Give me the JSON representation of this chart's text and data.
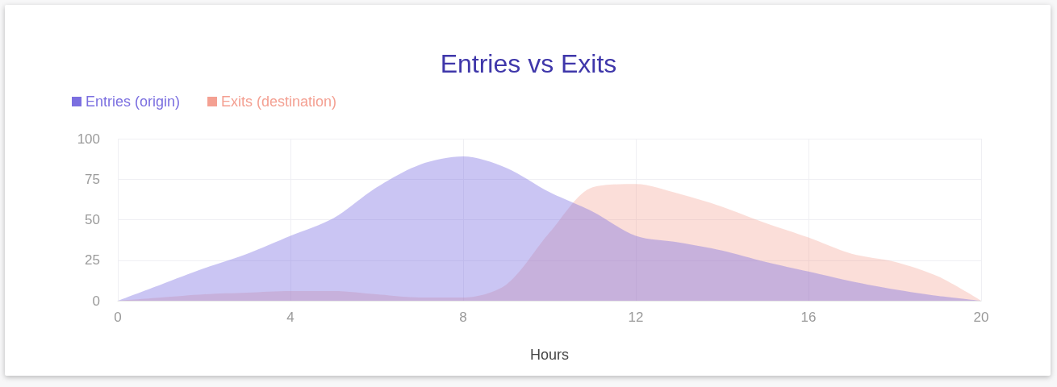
{
  "chart_data": {
    "type": "area",
    "title": "Entries vs Exits",
    "xlabel": "Hours",
    "x": [
      0,
      1,
      2,
      3,
      4,
      5,
      6,
      7,
      8,
      9,
      10,
      11,
      12,
      13,
      14,
      15,
      16,
      17,
      18,
      19,
      20
    ],
    "series": [
      {
        "name": "Entries (origin)",
        "color": "#7b6fe0",
        "values": [
          0,
          10,
          20,
          29,
          40,
          51,
          70,
          84,
          89,
          82,
          67,
          55,
          40,
          36,
          31,
          24,
          18,
          12,
          7,
          3,
          0
        ]
      },
      {
        "name": "Exits (destination)",
        "color": "#f4a092",
        "values": [
          0,
          2,
          4,
          5,
          6,
          6,
          4,
          2,
          2,
          10,
          42,
          70,
          72,
          66,
          58,
          48,
          39,
          29,
          24,
          15,
          0
        ]
      }
    ],
    "xlim": [
      0,
      20
    ],
    "xticks": [
      0,
      4,
      8,
      12,
      16,
      20
    ],
    "ylim": [
      0,
      100
    ],
    "yticks": [
      0,
      25,
      50,
      75,
      100
    ],
    "grid": true,
    "legend": "top left"
  }
}
